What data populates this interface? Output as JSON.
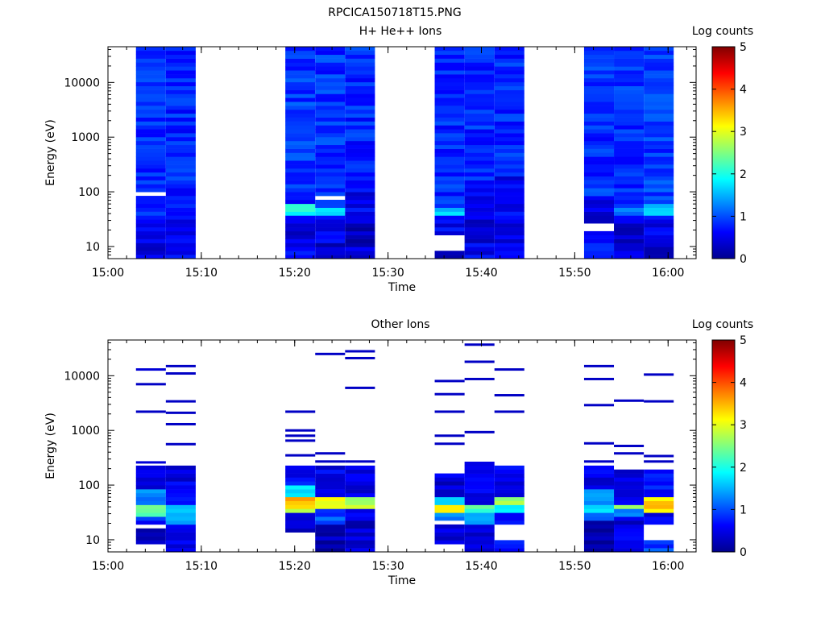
{
  "page_title": "RPCICA150718T15.PNG",
  "colormap": [
    "#00008f",
    "#0000ff",
    "#0080ff",
    "#00ffff",
    "#80ff80",
    "#ffff00",
    "#ff8000",
    "#ff0000",
    "#800000"
  ],
  "chart_data": [
    {
      "type": "heatmap",
      "title": "H+ He++ Ions",
      "xlabel": "Time",
      "ylabel": "Energy (eV)",
      "x_ticks": [
        "15:00",
        "15:10",
        "15:20",
        "15:30",
        "15:40",
        "15:50",
        "16:00"
      ],
      "y_ticks": [
        "10",
        "100",
        "1000",
        "10000"
      ],
      "y_scale": "log",
      "ylim": [
        6,
        45000
      ],
      "xlim_minutes": [
        0,
        63
      ],
      "colorbar": {
        "label": "Log counts",
        "ticks": [
          "0",
          "1",
          "2",
          "3",
          "4",
          "5"
        ],
        "range": [
          0,
          5
        ]
      },
      "columns": [
        {
          "t0": 3.0,
          "t1": 6.2,
          "seed": 11,
          "bands": [
            [
              6,
              12,
              0.45
            ],
            [
              12,
              40,
              0.55
            ],
            [
              40,
              85,
              0.75
            ],
            [
              85,
              95,
              -1
            ],
            [
              95,
              45000,
              0.85
            ]
          ]
        },
        {
          "t0": 6.2,
          "t1": 9.4,
          "seed": 12,
          "bands": [
            [
              6,
              12,
              0.65
            ],
            [
              12,
              40,
              0.55
            ],
            [
              40,
              110,
              0.6
            ],
            [
              110,
              45000,
              0.8
            ]
          ]
        },
        {
          "t0": 19.0,
          "t1": 22.2,
          "seed": 13,
          "bands": [
            [
              6,
              12,
              0.6
            ],
            [
              12,
              40,
              0.45
            ],
            [
              40,
              60,
              2.0
            ],
            [
              60,
              140,
              0.8
            ],
            [
              140,
              45000,
              0.9
            ]
          ]
        },
        {
          "t0": 22.2,
          "t1": 25.4,
          "seed": 14,
          "bands": [
            [
              6,
              12,
              0.35
            ],
            [
              12,
              40,
              0.5
            ],
            [
              40,
              55,
              1.6
            ],
            [
              55,
              75,
              1.0
            ],
            [
              75,
              85,
              -1
            ],
            [
              85,
              45000,
              0.85
            ]
          ]
        },
        {
          "t0": 25.4,
          "t1": 28.6,
          "seed": 15,
          "bands": [
            [
              6,
              12,
              0.4
            ],
            [
              12,
              40,
              0.3
            ],
            [
              40,
              120,
              0.55
            ],
            [
              120,
              45000,
              0.8
            ]
          ]
        },
        {
          "t0": 35.0,
          "t1": 38.2,
          "seed": 16,
          "bands": [
            [
              6,
              9,
              0.35
            ],
            [
              9,
              16,
              -1
            ],
            [
              16,
              40,
              0.55
            ],
            [
              40,
              50,
              1.6
            ],
            [
              50,
              45000,
              0.8
            ]
          ]
        },
        {
          "t0": 38.2,
          "t1": 41.4,
          "seed": 17,
          "bands": [
            [
              6,
              12,
              0.55
            ],
            [
              12,
              40,
              0.4
            ],
            [
              40,
              110,
              0.6
            ],
            [
              110,
              120,
              -1
            ],
            [
              120,
              45000,
              0.8
            ]
          ]
        },
        {
          "t0": 41.4,
          "t1": 44.6,
          "seed": 18,
          "bands": [
            [
              6,
              12,
              0.5
            ],
            [
              12,
              40,
              0.45
            ],
            [
              40,
              200,
              0.55
            ],
            [
              200,
              45000,
              0.8
            ]
          ]
        },
        {
          "t0": 51.0,
          "t1": 54.2,
          "seed": 19,
          "bands": [
            [
              6,
              20,
              0.7
            ],
            [
              20,
              26,
              -1
            ],
            [
              26,
              80,
              0.4
            ],
            [
              80,
              45000,
              0.85
            ]
          ]
        },
        {
          "t0": 54.2,
          "t1": 57.4,
          "seed": 20,
          "bands": [
            [
              6,
              10,
              0.6
            ],
            [
              10,
              15,
              0.25
            ],
            [
              15,
              40,
              0.4
            ],
            [
              40,
              50,
              1.3
            ],
            [
              50,
              45000,
              0.85
            ]
          ]
        },
        {
          "t0": 57.4,
          "t1": 60.6,
          "seed": 21,
          "bands": [
            [
              6,
              12,
              0.3
            ],
            [
              12,
              40,
              0.5
            ],
            [
              40,
              60,
              1.6
            ],
            [
              60,
              45000,
              0.9
            ]
          ]
        }
      ]
    },
    {
      "type": "heatmap",
      "title": "Other Ions",
      "xlabel": "Time",
      "ylabel": "Energy (eV)",
      "x_ticks": [
        "15:00",
        "15:10",
        "15:20",
        "15:30",
        "15:40",
        "15:50",
        "16:00"
      ],
      "y_ticks": [
        "10",
        "100",
        "1000",
        "10000"
      ],
      "y_scale": "log",
      "ylim": [
        6,
        45000
      ],
      "xlim_minutes": [
        0,
        63
      ],
      "colorbar": {
        "label": "Log counts",
        "ticks": [
          "0",
          "1",
          "2",
          "3",
          "4",
          "5"
        ],
        "range": [
          0,
          5
        ]
      },
      "columns": [
        {
          "t0": 3.0,
          "t1": 6.2,
          "seed": 31,
          "bands": [
            [
              9,
              16,
              0.3
            ],
            [
              20,
              26,
              0.8
            ],
            [
              26,
              45,
              2.2
            ],
            [
              45,
              80,
              1.3
            ],
            [
              80,
              220,
              0.45
            ]
          ],
          "lines": [
            [
              260,
              0.4
            ],
            [
              2200,
              0.3
            ],
            [
              7000,
              0.3
            ],
            [
              13000,
              0.4
            ]
          ]
        },
        {
          "t0": 6.2,
          "t1": 9.4,
          "seed": 32,
          "bands": [
            [
              6,
              20,
              0.6
            ],
            [
              20,
              30,
              1.3
            ],
            [
              30,
              45,
              1.8
            ],
            [
              45,
              220,
              0.5
            ]
          ],
          "lines": [
            [
              560,
              0.3
            ],
            [
              1300,
              0.3
            ],
            [
              2100,
              0.3
            ],
            [
              3400,
              0.3
            ],
            [
              11000,
              0.3
            ],
            [
              15000,
              0.3
            ]
          ]
        },
        {
          "t0": 19.0,
          "t1": 22.2,
          "seed": 33,
          "bands": [
            [
              14,
              22,
              0.3
            ],
            [
              22,
              30,
              0.6
            ],
            [
              30,
              40,
              2.6
            ],
            [
              40,
              60,
              3.4
            ],
            [
              60,
              100,
              1.8
            ],
            [
              100,
              220,
              0.6
            ]
          ],
          "lines": [
            [
              350,
              0.3
            ],
            [
              650,
              0.3
            ],
            [
              800,
              0.3
            ],
            [
              1000,
              0.3
            ],
            [
              2200,
              0.3
            ]
          ]
        },
        {
          "t0": 22.2,
          "t1": 25.4,
          "seed": 34,
          "bands": [
            [
              6,
              15,
              0.2
            ],
            [
              15,
              20,
              0.3
            ],
            [
              20,
              35,
              1.0
            ],
            [
              35,
              60,
              3.2
            ],
            [
              60,
              230,
              0.5
            ]
          ],
          "lines": [
            [
              270,
              0.3
            ],
            [
              380,
              0.3
            ],
            [
              25000,
              0.3
            ]
          ]
        },
        {
          "t0": 25.4,
          "t1": 28.6,
          "seed": 35,
          "bands": [
            [
              6,
              25,
              0.35
            ],
            [
              25,
              35,
              0.6
            ],
            [
              35,
              60,
              2.8
            ],
            [
              60,
              230,
              0.5
            ]
          ],
          "lines": [
            [
              270,
              0.3
            ],
            [
              6000,
              0.3
            ],
            [
              21000,
              0.3
            ],
            [
              28000,
              0.3
            ]
          ]
        },
        {
          "t0": 35.0,
          "t1": 38.2,
          "seed": 36,
          "bands": [
            [
              9,
              18,
              0.4
            ],
            [
              22,
              30,
              1.2
            ],
            [
              30,
              45,
              3.0
            ],
            [
              45,
              60,
              1.8
            ],
            [
              60,
              170,
              0.4
            ]
          ],
          "lines": [
            [
              570,
              0.3
            ],
            [
              800,
              0.3
            ],
            [
              2200,
              0.3
            ],
            [
              4600,
              0.3
            ],
            [
              8000,
              0.3
            ]
          ]
        },
        {
          "t0": 38.2,
          "t1": 41.4,
          "seed": 37,
          "bands": [
            [
              6,
              20,
              0.3
            ],
            [
              20,
              30,
              1.3
            ],
            [
              30,
              45,
              2.2
            ],
            [
              45,
              250,
              0.45
            ]
          ],
          "lines": [
            [
              930,
              0.3
            ],
            [
              8700,
              0.3
            ],
            [
              18000,
              0.3
            ],
            [
              37000,
              0.3
            ]
          ]
        },
        {
          "t0": 41.4,
          "t1": 44.6,
          "seed": 38,
          "bands": [
            [
              6,
              10,
              0.6
            ],
            [
              20,
              30,
              0.6
            ],
            [
              30,
              45,
              1.8
            ],
            [
              45,
              60,
              2.6
            ],
            [
              60,
              230,
              0.5
            ]
          ],
          "lines": [
            [
              2200,
              0.3
            ],
            [
              4400,
              0.3
            ],
            [
              13000,
              0.3
            ]
          ]
        },
        {
          "t0": 51.0,
          "t1": 54.2,
          "seed": 39,
          "bands": [
            [
              6,
              22,
              0.2
            ],
            [
              22,
              30,
              0.9
            ],
            [
              30,
              45,
              1.9
            ],
            [
              45,
              80,
              1.2
            ],
            [
              80,
              220,
              0.5
            ]
          ],
          "lines": [
            [
              270,
              0.3
            ],
            [
              580,
              0.3
            ],
            [
              2900,
              0.3
            ],
            [
              8700,
              0.3
            ],
            [
              15000,
              0.3
            ]
          ]
        },
        {
          "t0": 54.2,
          "t1": 57.4,
          "seed": 40,
          "bands": [
            [
              6,
              18,
              0.6
            ],
            [
              18,
              25,
              0.4
            ],
            [
              25,
              35,
              1.3
            ],
            [
              35,
              45,
              2.6
            ],
            [
              45,
              200,
              0.5
            ]
          ],
          "lines": [
            [
              380,
              0.3
            ],
            [
              520,
              0.3
            ],
            [
              3500,
              0.3
            ]
          ]
        },
        {
          "t0": 57.4,
          "t1": 60.6,
          "seed": 41,
          "bands": [
            [
              6,
              10,
              0.9
            ],
            [
              20,
              30,
              0.6
            ],
            [
              30,
              60,
              3.3
            ],
            [
              60,
              200,
              0.7
            ]
          ],
          "lines": [
            [
              270,
              0.3
            ],
            [
              340,
              0.3
            ],
            [
              3400,
              0.3
            ],
            [
              10500,
              0.3
            ]
          ]
        }
      ]
    }
  ]
}
